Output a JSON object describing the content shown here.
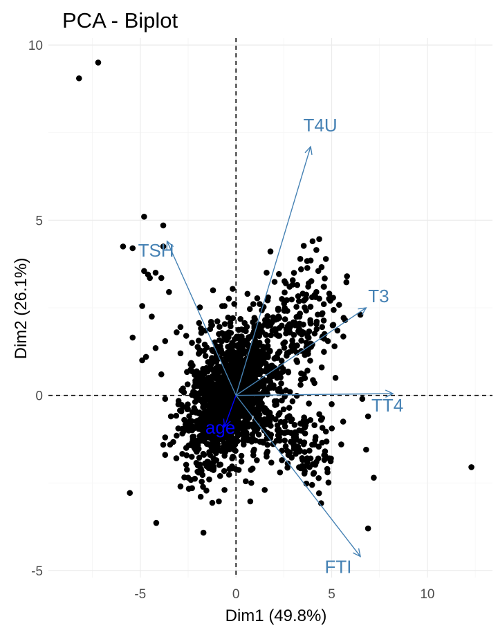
{
  "chart_data": {
    "type": "scatter",
    "subtype": "pca-biplot",
    "title": "PCA - Biplot",
    "xlabel": "Dim1 (49.8%)",
    "ylabel": "Dim2 (26.1%)",
    "xlim": [
      -9.8,
      13.4
    ],
    "ylim": [
      -5.2,
      10.2
    ],
    "x_ticks": [
      -5,
      0,
      5,
      10
    ],
    "y_ticks": [
      -5,
      0,
      5,
      10
    ],
    "tick_labels": {
      "x": [
        "-5",
        "0",
        "5",
        "10"
      ],
      "y": [
        "-5",
        "0",
        "5",
        "10"
      ]
    },
    "grid": true,
    "reference_lines": {
      "x": 0,
      "y": 0,
      "style": "dashed"
    },
    "point_color": "#000000",
    "variables": [
      {
        "name": "T4U",
        "x": 3.9,
        "y": 7.1,
        "color": "#4682b4"
      },
      {
        "name": "TSH",
        "x": -3.6,
        "y": 4.4,
        "color": "#4682b4"
      },
      {
        "name": "T3",
        "x": 6.8,
        "y": 2.5,
        "color": "#4682b4"
      },
      {
        "name": "TT4",
        "x": 8.2,
        "y": 0.05,
        "color": "#4682b4"
      },
      {
        "name": "FTI",
        "x": 6.5,
        "y": -4.6,
        "color": "#4682b4"
      },
      {
        "name": "age",
        "x": -0.6,
        "y": -0.9,
        "color": "#0000ff"
      }
    ],
    "points": [
      [
        -8.2,
        9.05
      ],
      [
        -7.2,
        9.5
      ],
      [
        -4.8,
        5.1
      ],
      [
        -3.8,
        4.85
      ],
      [
        -5.9,
        4.25
      ],
      [
        -5.4,
        4.2
      ],
      [
        -3.8,
        4.25
      ],
      [
        -4.6,
        3.45
      ],
      [
        -4.2,
        3.5
      ],
      [
        -3.9,
        3.35
      ],
      [
        -4.5,
        3.35
      ],
      [
        -4.8,
        3.55
      ],
      [
        -3.5,
        2.95
      ],
      [
        -4.9,
        2.55
      ],
      [
        -4.4,
        2.25
      ],
      [
        -2.9,
        1.95
      ],
      [
        -3.1,
        1.8
      ],
      [
        -3.7,
        1.55
      ],
      [
        -5.4,
        1.65
      ],
      [
        -4.9,
        1.0
      ],
      [
        -4.7,
        1.1
      ],
      [
        -3.9,
        0.6
      ],
      [
        -4.2,
        1.35
      ],
      [
        -1.2,
        3.0
      ],
      [
        -0.6,
        2.55
      ],
      [
        -1.3,
        2.1
      ],
      [
        -1.6,
        1.85
      ],
      [
        -2.3,
        1.5
      ],
      [
        -2.6,
        1.7
      ],
      [
        -2.9,
        1.2
      ],
      [
        -2.7,
        -0.7
      ],
      [
        -3.7,
        -0.1
      ],
      [
        -3.4,
        -0.6
      ],
      [
        -3.7,
        -1.2
      ],
      [
        -3.7,
        -1.7
      ],
      [
        -3.1,
        -1.15
      ],
      [
        -2.6,
        -1.5
      ],
      [
        -2.5,
        -2.35
      ],
      [
        -2.9,
        -2.6
      ],
      [
        -1.4,
        -2.4
      ],
      [
        -0.6,
        -2.7
      ],
      [
        4.0,
        4.4
      ],
      [
        4.2,
        4.15
      ],
      [
        3.9,
        3.85
      ],
      [
        3.4,
        3.6
      ],
      [
        4.3,
        3.55
      ],
      [
        5.8,
        3.4
      ],
      [
        4.2,
        2.95
      ],
      [
        4.6,
        3.1
      ],
      [
        3.8,
        3.2
      ],
      [
        3.2,
        3.15
      ],
      [
        2.8,
        3.1
      ],
      [
        2.6,
        3.2
      ],
      [
        1.6,
        3.5
      ],
      [
        2.4,
        2.75
      ],
      [
        6.5,
        2.3
      ],
      [
        5.7,
        2.15
      ],
      [
        5.3,
        1.85
      ],
      [
        4.8,
        1.55
      ],
      [
        3.9,
        2.05
      ],
      [
        3.3,
        1.9
      ],
      [
        3.6,
        1.15
      ],
      [
        3.2,
        0.95
      ],
      [
        2.9,
        1.4
      ],
      [
        2.2,
        1.7
      ],
      [
        1.8,
        2.0
      ],
      [
        5.2,
        0.5
      ],
      [
        3.4,
        0.45
      ],
      [
        4.1,
        0.35
      ],
      [
        5.0,
        -0.25
      ],
      [
        6.6,
        -0.1
      ],
      [
        6.9,
        -0.6
      ],
      [
        5.6,
        -0.75
      ],
      [
        4.5,
        -0.65
      ],
      [
        3.7,
        -0.75
      ],
      [
        4.1,
        -0.85
      ],
      [
        3.3,
        -1.0
      ],
      [
        4.5,
        -1.35
      ],
      [
        5.5,
        -1.4
      ],
      [
        4.3,
        -1.8
      ],
      [
        4.2,
        -1.9
      ],
      [
        6.8,
        -1.55
      ],
      [
        7.2,
        -2.35
      ],
      [
        6.9,
        -3.8
      ],
      [
        12.3,
        -2.05
      ],
      [
        1.5,
        -2.7
      ],
      [
        2.3,
        -2.2
      ],
      [
        2.4,
        -1.85
      ],
      [
        1.6,
        -1.75
      ],
      [
        0.8,
        -2.5
      ],
      [
        -0.2,
        -1.8
      ],
      [
        -1.8,
        -2.15
      ]
    ]
  }
}
